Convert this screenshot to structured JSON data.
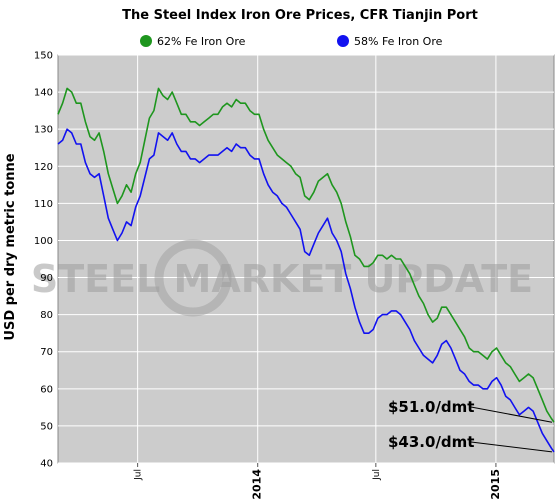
{
  "chart_data": {
    "type": "line",
    "title": "The Steel Index Iron Ore Prices, CFR Tianjin Port",
    "ylabel": "USD per dry metric tonne",
    "xlabel": "",
    "ylim": [
      40,
      150
    ],
    "yticks": [
      40,
      50,
      60,
      70,
      80,
      90,
      100,
      110,
      120,
      130,
      140,
      150
    ],
    "xlim": [
      "2013-03-01",
      "2015-03-31"
    ],
    "xticks": [
      {
        "date": "2013-07-01",
        "label": "Jul",
        "bold": false
      },
      {
        "date": "2014-01-01",
        "label": "2014",
        "bold": true
      },
      {
        "date": "2014-07-01",
        "label": "Jul",
        "bold": false
      },
      {
        "date": "2015-01-01",
        "label": "2015",
        "bold": true
      }
    ],
    "grid": true,
    "background": "#cccccc",
    "legend_position": "top",
    "watermark": "STEEL MARKET UPDATE",
    "series": [
      {
        "name": "62% Fe Iron Ore",
        "color": "#1e961e",
        "points": [
          [
            "2013-03-01",
            134
          ],
          [
            "2013-03-08",
            137
          ],
          [
            "2013-03-15",
            141
          ],
          [
            "2013-03-22",
            140
          ],
          [
            "2013-03-29",
            137
          ],
          [
            "2013-04-05",
            137
          ],
          [
            "2013-04-12",
            132
          ],
          [
            "2013-04-19",
            128
          ],
          [
            "2013-04-26",
            127
          ],
          [
            "2013-05-03",
            129
          ],
          [
            "2013-05-10",
            124
          ],
          [
            "2013-05-17",
            118
          ],
          [
            "2013-05-24",
            114
          ],
          [
            "2013-05-31",
            110
          ],
          [
            "2013-06-07",
            112
          ],
          [
            "2013-06-14",
            115
          ],
          [
            "2013-06-21",
            113
          ],
          [
            "2013-06-28",
            118
          ],
          [
            "2013-07-05",
            121
          ],
          [
            "2013-07-12",
            127
          ],
          [
            "2013-07-19",
            133
          ],
          [
            "2013-07-26",
            135
          ],
          [
            "2013-08-02",
            141
          ],
          [
            "2013-08-09",
            139
          ],
          [
            "2013-08-16",
            138
          ],
          [
            "2013-08-23",
            140
          ],
          [
            "2013-08-30",
            137
          ],
          [
            "2013-09-06",
            134
          ],
          [
            "2013-09-13",
            134
          ],
          [
            "2013-09-20",
            132
          ],
          [
            "2013-09-27",
            132
          ],
          [
            "2013-10-04",
            131
          ],
          [
            "2013-10-11",
            132
          ],
          [
            "2013-10-18",
            133
          ],
          [
            "2013-10-25",
            134
          ],
          [
            "2013-11-01",
            134
          ],
          [
            "2013-11-08",
            136
          ],
          [
            "2013-11-15",
            137
          ],
          [
            "2013-11-22",
            136
          ],
          [
            "2013-11-29",
            138
          ],
          [
            "2013-12-06",
            137
          ],
          [
            "2013-12-13",
            137
          ],
          [
            "2013-12-20",
            135
          ],
          [
            "2013-12-27",
            134
          ],
          [
            "2014-01-03",
            134
          ],
          [
            "2014-01-10",
            130
          ],
          [
            "2014-01-17",
            127
          ],
          [
            "2014-01-24",
            125
          ],
          [
            "2014-01-31",
            123
          ],
          [
            "2014-02-07",
            122
          ],
          [
            "2014-02-14",
            121
          ],
          [
            "2014-02-21",
            120
          ],
          [
            "2014-02-28",
            118
          ],
          [
            "2014-03-07",
            117
          ],
          [
            "2014-03-14",
            112
          ],
          [
            "2014-03-21",
            111
          ],
          [
            "2014-03-28",
            113
          ],
          [
            "2014-04-04",
            116
          ],
          [
            "2014-04-11",
            117
          ],
          [
            "2014-04-18",
            118
          ],
          [
            "2014-04-25",
            115
          ],
          [
            "2014-05-02",
            113
          ],
          [
            "2014-05-09",
            110
          ],
          [
            "2014-05-16",
            105
          ],
          [
            "2014-05-23",
            101
          ],
          [
            "2014-05-30",
            96
          ],
          [
            "2014-06-06",
            95
          ],
          [
            "2014-06-13",
            93
          ],
          [
            "2014-06-20",
            93
          ],
          [
            "2014-06-27",
            94
          ],
          [
            "2014-07-04",
            96
          ],
          [
            "2014-07-11",
            96
          ],
          [
            "2014-07-18",
            95
          ],
          [
            "2014-07-25",
            96
          ],
          [
            "2014-08-01",
            95
          ],
          [
            "2014-08-08",
            95
          ],
          [
            "2014-08-15",
            93
          ],
          [
            "2014-08-22",
            91
          ],
          [
            "2014-08-29",
            88
          ],
          [
            "2014-09-05",
            85
          ],
          [
            "2014-09-12",
            83
          ],
          [
            "2014-09-19",
            80
          ],
          [
            "2014-09-26",
            78
          ],
          [
            "2014-10-03",
            79
          ],
          [
            "2014-10-10",
            82
          ],
          [
            "2014-10-17",
            82
          ],
          [
            "2014-10-24",
            80
          ],
          [
            "2014-10-31",
            78
          ],
          [
            "2014-11-07",
            76
          ],
          [
            "2014-11-14",
            74
          ],
          [
            "2014-11-21",
            71
          ],
          [
            "2014-11-28",
            70
          ],
          [
            "2014-12-05",
            70
          ],
          [
            "2014-12-12",
            69
          ],
          [
            "2014-12-19",
            68
          ],
          [
            "2014-12-26",
            70
          ],
          [
            "2015-01-02",
            71
          ],
          [
            "2015-01-09",
            69
          ],
          [
            "2015-01-16",
            67
          ],
          [
            "2015-01-23",
            66
          ],
          [
            "2015-01-30",
            64
          ],
          [
            "2015-02-06",
            62
          ],
          [
            "2015-02-13",
            63
          ],
          [
            "2015-02-20",
            64
          ],
          [
            "2015-02-27",
            63
          ],
          [
            "2015-03-06",
            60
          ],
          [
            "2015-03-13",
            57
          ],
          [
            "2015-03-20",
            54
          ],
          [
            "2015-03-27",
            52
          ],
          [
            "2015-03-31",
            51
          ]
        ]
      },
      {
        "name": "58% Fe Iron Ore",
        "color": "#1212f0",
        "points": [
          [
            "2013-03-01",
            126
          ],
          [
            "2013-03-08",
            127
          ],
          [
            "2013-03-15",
            130
          ],
          [
            "2013-03-22",
            129
          ],
          [
            "2013-03-29",
            126
          ],
          [
            "2013-04-05",
            126
          ],
          [
            "2013-04-12",
            121
          ],
          [
            "2013-04-19",
            118
          ],
          [
            "2013-04-26",
            117
          ],
          [
            "2013-05-03",
            118
          ],
          [
            "2013-05-10",
            112
          ],
          [
            "2013-05-17",
            106
          ],
          [
            "2013-05-24",
            103
          ],
          [
            "2013-05-31",
            100
          ],
          [
            "2013-06-07",
            102
          ],
          [
            "2013-06-14",
            105
          ],
          [
            "2013-06-21",
            104
          ],
          [
            "2013-06-28",
            109
          ],
          [
            "2013-07-05",
            112
          ],
          [
            "2013-07-12",
            117
          ],
          [
            "2013-07-19",
            122
          ],
          [
            "2013-07-26",
            123
          ],
          [
            "2013-08-02",
            129
          ],
          [
            "2013-08-09",
            128
          ],
          [
            "2013-08-16",
            127
          ],
          [
            "2013-08-23",
            129
          ],
          [
            "2013-08-30",
            126
          ],
          [
            "2013-09-06",
            124
          ],
          [
            "2013-09-13",
            124
          ],
          [
            "2013-09-20",
            122
          ],
          [
            "2013-09-27",
            122
          ],
          [
            "2013-10-04",
            121
          ],
          [
            "2013-10-11",
            122
          ],
          [
            "2013-10-18",
            123
          ],
          [
            "2013-10-25",
            123
          ],
          [
            "2013-11-01",
            123
          ],
          [
            "2013-11-08",
            124
          ],
          [
            "2013-11-15",
            125
          ],
          [
            "2013-11-22",
            124
          ],
          [
            "2013-11-29",
            126
          ],
          [
            "2013-12-06",
            125
          ],
          [
            "2013-12-13",
            125
          ],
          [
            "2013-12-20",
            123
          ],
          [
            "2013-12-27",
            122
          ],
          [
            "2014-01-03",
            122
          ],
          [
            "2014-01-10",
            118
          ],
          [
            "2014-01-17",
            115
          ],
          [
            "2014-01-24",
            113
          ],
          [
            "2014-01-31",
            112
          ],
          [
            "2014-02-07",
            110
          ],
          [
            "2014-02-14",
            109
          ],
          [
            "2014-02-21",
            107
          ],
          [
            "2014-02-28",
            105
          ],
          [
            "2014-03-07",
            103
          ],
          [
            "2014-03-14",
            97
          ],
          [
            "2014-03-21",
            96
          ],
          [
            "2014-03-28",
            99
          ],
          [
            "2014-04-04",
            102
          ],
          [
            "2014-04-11",
            104
          ],
          [
            "2014-04-18",
            106
          ],
          [
            "2014-04-25",
            102
          ],
          [
            "2014-05-02",
            100
          ],
          [
            "2014-05-09",
            97
          ],
          [
            "2014-05-16",
            91
          ],
          [
            "2014-05-23",
            87
          ],
          [
            "2014-05-30",
            82
          ],
          [
            "2014-06-06",
            78
          ],
          [
            "2014-06-13",
            75
          ],
          [
            "2014-06-20",
            75
          ],
          [
            "2014-06-27",
            76
          ],
          [
            "2014-07-04",
            79
          ],
          [
            "2014-07-11",
            80
          ],
          [
            "2014-07-18",
            80
          ],
          [
            "2014-07-25",
            81
          ],
          [
            "2014-08-01",
            81
          ],
          [
            "2014-08-08",
            80
          ],
          [
            "2014-08-15",
            78
          ],
          [
            "2014-08-22",
            76
          ],
          [
            "2014-08-29",
            73
          ],
          [
            "2014-09-05",
            71
          ],
          [
            "2014-09-12",
            69
          ],
          [
            "2014-09-19",
            68
          ],
          [
            "2014-09-26",
            67
          ],
          [
            "2014-10-03",
            69
          ],
          [
            "2014-10-10",
            72
          ],
          [
            "2014-10-17",
            73
          ],
          [
            "2014-10-24",
            71
          ],
          [
            "2014-10-31",
            68
          ],
          [
            "2014-11-07",
            65
          ],
          [
            "2014-11-14",
            64
          ],
          [
            "2014-11-21",
            62
          ],
          [
            "2014-11-28",
            61
          ],
          [
            "2014-12-05",
            61
          ],
          [
            "2014-12-12",
            60
          ],
          [
            "2014-12-19",
            60
          ],
          [
            "2014-12-26",
            62
          ],
          [
            "2015-01-02",
            63
          ],
          [
            "2015-01-09",
            61
          ],
          [
            "2015-01-16",
            58
          ],
          [
            "2015-01-23",
            57
          ],
          [
            "2015-01-30",
            55
          ],
          [
            "2015-02-06",
            53
          ],
          [
            "2015-02-13",
            54
          ],
          [
            "2015-02-20",
            55
          ],
          [
            "2015-02-27",
            54
          ],
          [
            "2015-03-06",
            51
          ],
          [
            "2015-03-13",
            48
          ],
          [
            "2015-03-20",
            46
          ],
          [
            "2015-03-27",
            44
          ],
          [
            "2015-03-31",
            43
          ]
        ]
      }
    ],
    "annotations": [
      {
        "text": "$51.0/dmt",
        "date": "2015-03-31",
        "value": 51
      },
      {
        "text": "$43.0/dmt",
        "date": "2015-03-31",
        "value": 43
      }
    ]
  }
}
